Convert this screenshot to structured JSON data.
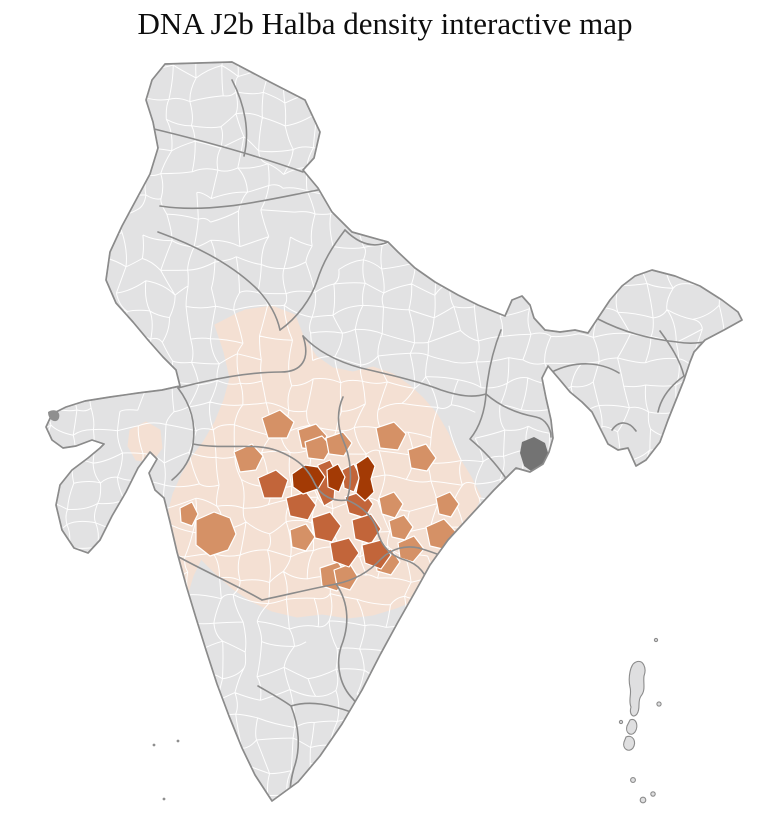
{
  "title": "DNA J2b Halba density interactive map",
  "map": {
    "name": "india-district-choropleth",
    "colors": {
      "background": "#ffffff",
      "land": "#e2e2e3",
      "district_border": "#ffffff",
      "state_border": "#8b8b8b",
      "coast_outline": "#8b8b8b",
      "delta": "#737373",
      "islet": "#8f8f8f",
      "island": "#dfdfe0",
      "level1": "#f4e0d3",
      "level2": "#d59166",
      "level3": "#c2653a",
      "level4": "#a33a05"
    },
    "density_levels": [
      {
        "key": "land",
        "hex": "#e2e2e3"
      },
      {
        "key": "level1",
        "hex": "#f4e0d3"
      },
      {
        "key": "level2",
        "hex": "#d59166"
      },
      {
        "key": "level3",
        "hex": "#c2653a"
      },
      {
        "key": "level4",
        "hex": "#a33a05"
      }
    ]
  }
}
